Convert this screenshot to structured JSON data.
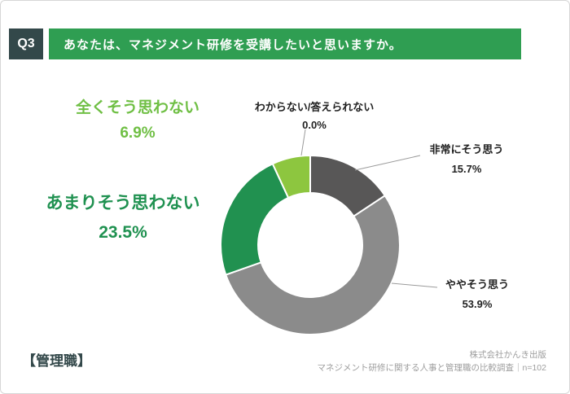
{
  "header": {
    "q_label": "Q3",
    "title": "あなたは、マネジメント研修を受講したいと思いますか。"
  },
  "colors": {
    "q_box_bg": "#33484a",
    "banner_bg": "#2f9e52",
    "accent_green_dark": "#219150",
    "accent_green_light": "#8dc63f",
    "gray_dark": "#585757",
    "gray_mid": "#8b8b8b"
  },
  "chart_data": {
    "type": "pie",
    "donut": true,
    "title": "あなたは、マネジメント研修を受講したいと思いますか。",
    "start_angle_deg": -90,
    "direction": "clockwise",
    "unit": "%",
    "segments": [
      {
        "label": "わからない/答えられない",
        "value": 0.0,
        "color": "#ffffff"
      },
      {
        "label": "非常にそう思う",
        "value": 15.7,
        "color": "#585757"
      },
      {
        "label": "ややそう思う",
        "value": 53.9,
        "color": "#8b8b8b"
      },
      {
        "label": "あまりそう思わない",
        "value": 23.5,
        "color": "#219150"
      },
      {
        "label": "全くそう思わない",
        "value": 6.9,
        "color": "#8dc63f"
      }
    ]
  },
  "labels": {
    "strongly_no": {
      "label": "全くそう思わない",
      "pct": "6.9%",
      "color": "#6fbf44"
    },
    "unknown": {
      "label": "わからない/答えられない",
      "pct": "0.0%",
      "color": "#222222"
    },
    "strongly_yes": {
      "label": "非常にそう思う",
      "pct": "15.7%",
      "color": "#222222"
    },
    "somewhat_no": {
      "label": "あまりそう思わない",
      "pct": "23.5%",
      "color": "#1f9150"
    },
    "somewhat_yes": {
      "label": "ややそう思う",
      "pct": "53.9%",
      "color": "#222222"
    }
  },
  "footer": {
    "group": "【管理職】",
    "source_line1": "株式会社かんき出版",
    "source_line2": "マネジメント研修に関する人事と管理職の比較調査｜n=102"
  }
}
